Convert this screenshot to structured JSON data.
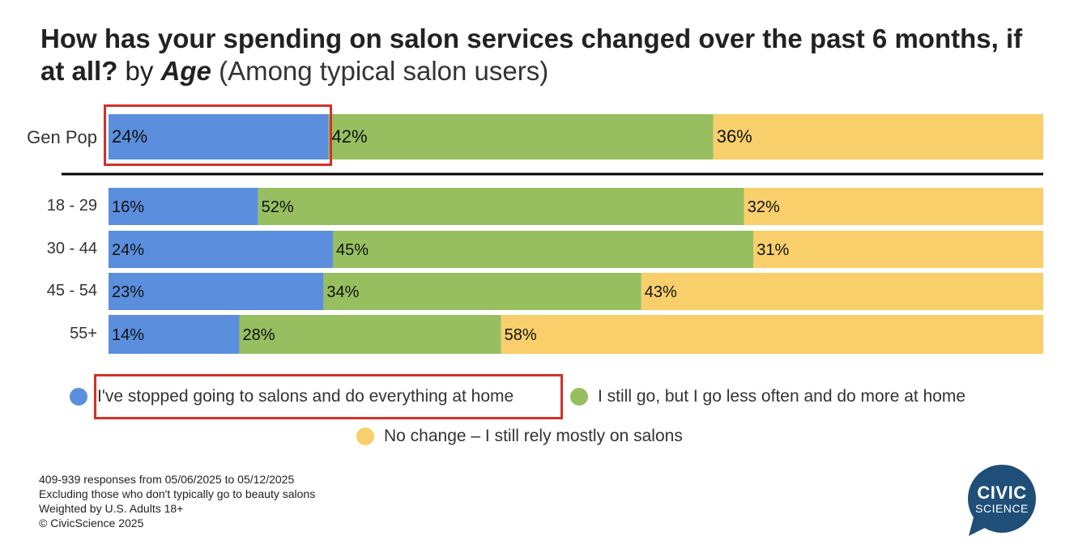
{
  "title": {
    "main": "How has your spending on salon services changed over the past 6 months, if at all?",
    "by_label": "by",
    "by_variable": "Age",
    "subtitle": "(Among typical salon users)"
  },
  "colors": {
    "stopped": "#5b8fdd",
    "less_often": "#97bf60",
    "no_change": "#f9cf6b",
    "highlight": "#d3312a",
    "divider": "#000000",
    "logo": "#1f4e78"
  },
  "chart_data": {
    "type": "bar",
    "orientation": "horizontal",
    "stacked": true,
    "categories": [
      "Gen Pop",
      "18 - 29",
      "30 - 44",
      "45 - 54",
      "55+"
    ],
    "series": [
      {
        "name": "I've stopped going to salons and do everything at home",
        "values": [
          24,
          16,
          24,
          23,
          14
        ]
      },
      {
        "name": "I still go, but I go less often and do more at home",
        "values": [
          42,
          52,
          45,
          34,
          28
        ]
      },
      {
        "name": "No change – I still rely mostly on salons",
        "values": [
          36,
          32,
          31,
          43,
          58
        ]
      }
    ],
    "value_labels": [
      [
        "24%",
        "42%",
        "36%"
      ],
      [
        "16%",
        "52%",
        "32%"
      ],
      [
        "24%",
        "45%",
        "31%"
      ],
      [
        "23%",
        "34%",
        "43%"
      ],
      [
        "14%",
        "28%",
        "58%"
      ]
    ],
    "legend_position": "bottom",
    "grid": false
  },
  "legend": [
    {
      "label": "I've stopped going to salons and do everything at home",
      "color": "#5b8fdd"
    },
    {
      "label": "I still go, but I go less often and do more at home",
      "color": "#97bf60"
    },
    {
      "label": "No change – I still rely mostly on salons",
      "color": "#f9cf6b"
    }
  ],
  "footnotes": [
    "409-939 responses from 05/06/2025 to 05/12/2025",
    "Excluding those who don't typically go to beauty salons",
    "Weighted by U.S. Adults 18+",
    "© CivicScience 2025"
  ],
  "logo": {
    "line1": "CIVIC",
    "line2": "SCIENCE"
  }
}
